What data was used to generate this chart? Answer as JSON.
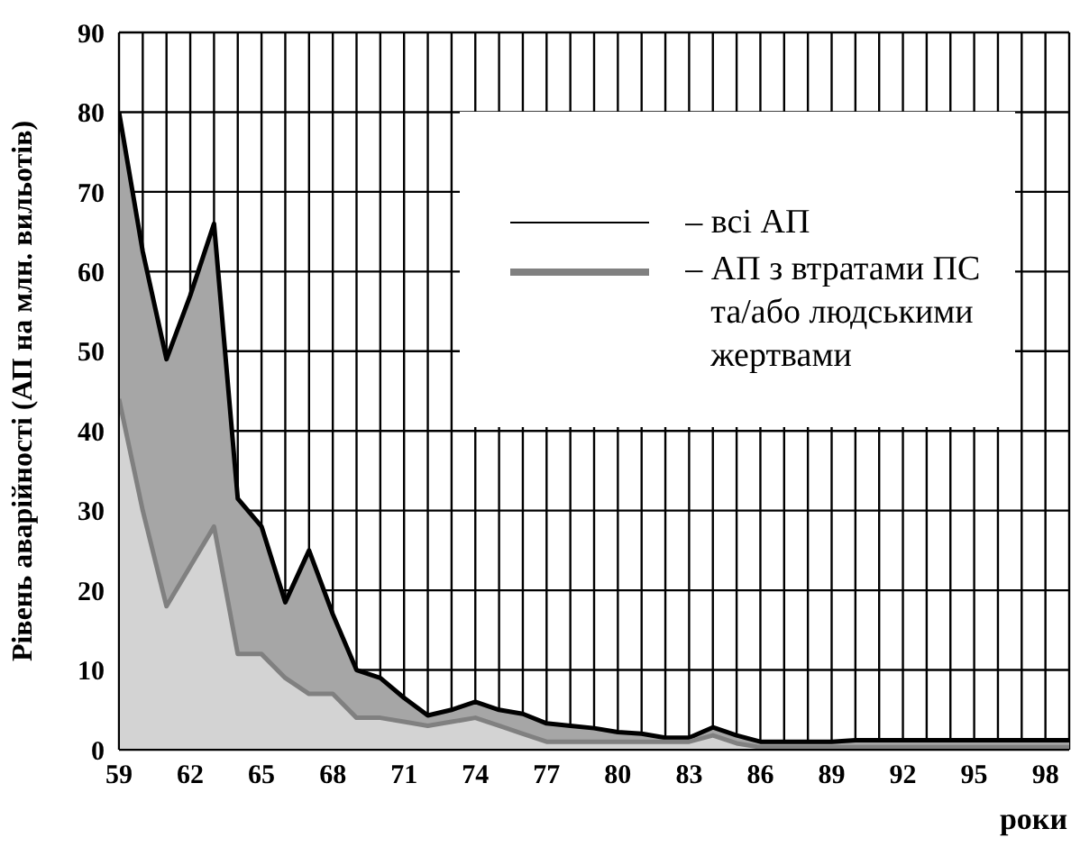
{
  "chart_data": {
    "type": "area",
    "ylabel": "Рівень аварійності (АП на млн. вильотів)",
    "xlabel": "роки",
    "x": [
      59,
      60,
      61,
      62,
      63,
      64,
      65,
      66,
      67,
      68,
      69,
      70,
      71,
      72,
      73,
      74,
      75,
      76,
      77,
      78,
      79,
      80,
      81,
      82,
      83,
      84,
      85,
      86,
      87,
      88,
      89,
      90,
      91,
      92,
      93,
      94,
      95,
      96,
      97,
      98,
      99
    ],
    "series": [
      {
        "name": "– всі АП",
        "color": "#000000",
        "values": [
          80,
          62.5,
          49,
          57,
          66,
          31.5,
          28,
          18.5,
          25,
          17,
          10,
          9,
          6.5,
          4.3,
          5,
          6,
          5,
          4.5,
          3.3,
          3,
          2.7,
          2.2,
          2,
          1.5,
          1.5,
          2.8,
          1.8,
          1,
          1,
          1,
          1,
          1.2,
          1.2,
          1.2,
          1.2,
          1.2,
          1.2,
          1.2,
          1.2,
          1.2,
          1.2
        ]
      },
      {
        "name": "– АП з втратами ПС та/або людськими жертвами",
        "color": "#808080",
        "values": [
          44,
          30,
          18,
          23,
          28,
          12,
          12,
          9,
          7,
          7,
          4,
          4,
          3.5,
          3,
          3.5,
          4,
          3,
          2,
          1,
          1,
          1,
          1,
          1,
          1,
          1,
          1.8,
          0.8,
          0.3,
          0.3,
          0.3,
          0.3,
          0.3,
          0.3,
          0.3,
          0.3,
          0.3,
          0.3,
          0.3,
          0.3,
          0.3,
          0.3
        ]
      }
    ],
    "xlim": [
      59,
      99
    ],
    "xticks": [
      59,
      {
        "value": 60,
        "label": null
      },
      {
        "value": 61,
        "label": null
      },
      62,
      {
        "value": 63,
        "label": null
      },
      {
        "value": 64,
        "label": null
      },
      65,
      {
        "value": 66,
        "label": null
      },
      {
        "value": 67,
        "label": null
      },
      68,
      {
        "value": 69,
        "label": null
      },
      {
        "value": 70,
        "label": null
      },
      71,
      {
        "value": 72,
        "label": null
      },
      {
        "value": 73,
        "label": null
      },
      74,
      {
        "value": 75,
        "label": null
      },
      {
        "value": 76,
        "label": null
      },
      77,
      {
        "value": 78,
        "label": null
      },
      {
        "value": 79,
        "label": null
      },
      80,
      {
        "value": 81,
        "label": null
      },
      {
        "value": 82,
        "label": null
      },
      83,
      {
        "value": 84,
        "label": null
      },
      {
        "value": 85,
        "label": null
      },
      86,
      {
        "value": 87,
        "label": null
      },
      {
        "value": 88,
        "label": null
      },
      89,
      {
        "value": 90,
        "label": null
      },
      {
        "value": 91,
        "label": null
      },
      92,
      {
        "value": 93,
        "label": null
      },
      {
        "value": 94,
        "label": null
      },
      95,
      {
        "value": 96,
        "label": null
      },
      {
        "value": 97,
        "label": null
      },
      98
    ],
    "ylim": [
      0,
      90
    ],
    "yticks": [
      0,
      10,
      20,
      30,
      40,
      50,
      60,
      70,
      80,
      90
    ],
    "grid": true,
    "legend": "top right"
  }
}
